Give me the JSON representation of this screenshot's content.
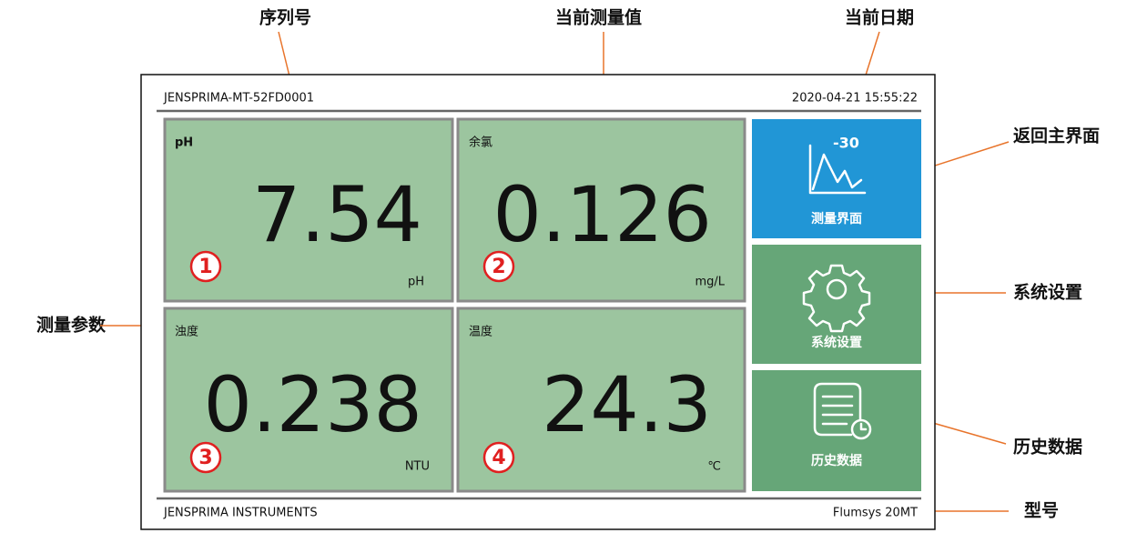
{
  "screen": {
    "header": {
      "serial": "JENSPRIMA-MT-52FD0001",
      "date": "2020-04-21 15:55:22"
    },
    "tiles": [
      {
        "label": "pH",
        "value": "7.54",
        "unit": "pH",
        "number": "1"
      },
      {
        "label": "余氯",
        "value": "0.126",
        "unit": "mg/L",
        "number": "2"
      },
      {
        "label": "浊度",
        "value": "0.238",
        "unit": "NTU",
        "number": "3"
      },
      {
        "label": "温度",
        "value": "24.3",
        "unit": "℃",
        "number": "4"
      }
    ],
    "buttons": [
      {
        "label": "测量界面",
        "icon_text": "-30"
      },
      {
        "label": "系统设置"
      },
      {
        "label": "历史数据"
      }
    ],
    "footer": {
      "company": "JENSPRIMA INSTRUMENTS",
      "model": "Flumsys 20MT"
    }
  },
  "annotations": {
    "serial": "序列号",
    "current_value": "当前测量值",
    "current_date": "当前日期",
    "home": "返回主界面",
    "settings": "系统设置",
    "history": "历史数据",
    "parameter": "测量参数",
    "model": "型号"
  }
}
